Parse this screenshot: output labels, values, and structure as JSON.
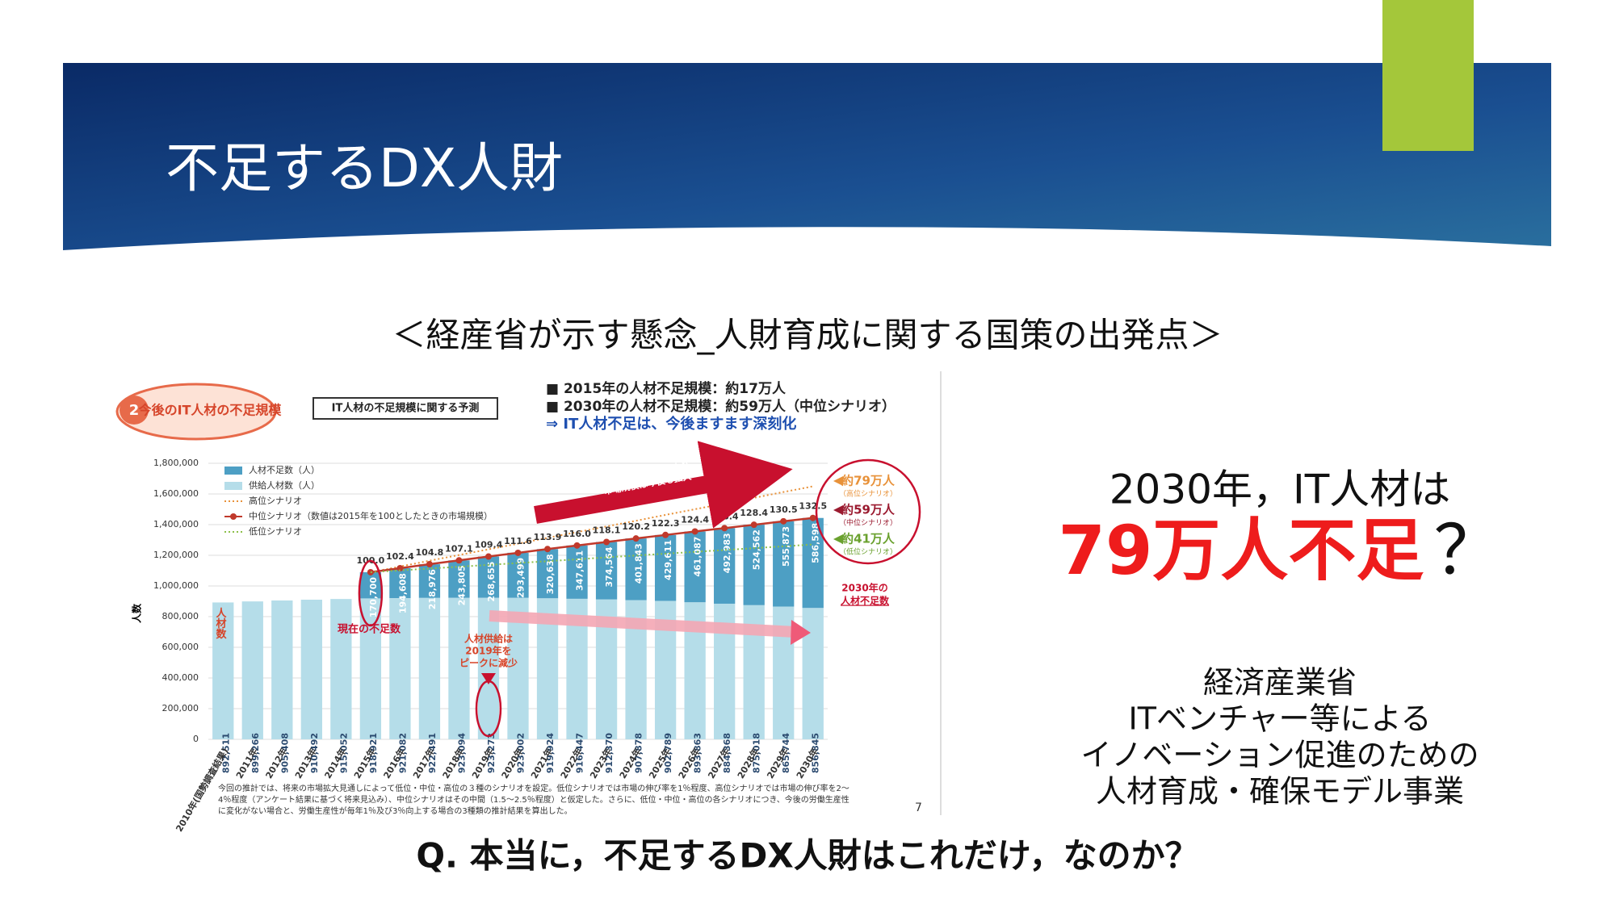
{
  "slide": {
    "title": "不足するDX人財",
    "subtitle": "＜経産省が示す懸念_人財育成に関する国策の出発点＞",
    "badge": "2",
    "badge_text": "今後のIT人材の不足規模",
    "box_title": "IT人材の不足規模に関する予測",
    "bullets": [
      "■ 2015年の人材不足規模：約17万人",
      "■ 2030年の人材不足規模：約59万人（中位シナリオ）",
      "⇒ IT人材不足は、今後ますます深刻化"
    ],
    "footnote": [
      "今回の推計では、将来の市場拡大見通しによって低位・中位・高位の３種のシナリオを設定。低位シナリオでは市場の伸び率を1％程度、高位シナリオでは市場の伸び率を2～",
      "4％程度（アンケート結果に基づく将来見込み）、中位シナリオはその中間（1.5～2.5％程度）と仮定した。さらに、低位・中位・高位の各シナリオにつき、今後の労働生産性",
      "に変化がない場合と、労働生産性が毎年1％及び3％向上する場合の3種類の推計結果を算出した。"
    ],
    "page_number": "7",
    "claim": {
      "line1": "2030年，IT人材は",
      "highlight": "79万人不足",
      "mark": "？"
    },
    "source": [
      "経済産業省",
      "ITベンチャー等による",
      "イノベーション促進のための",
      "人材育成・確保モデル事業"
    ],
    "question": "Q. 本当に，不足するDX人財はこれだけ，なのか？"
  },
  "chart_data": {
    "type": "bar",
    "stacked": true,
    "ylabel": "人数",
    "categories": [
      "2010年(国勢調査結果)",
      "2011年",
      "2012年",
      "2013年",
      "2014年",
      "2015年",
      "2016年",
      "2017年",
      "2018年",
      "2019年",
      "2020年",
      "2021年",
      "2022年",
      "2023年",
      "2024年",
      "2025年",
      "2026年",
      "2027年",
      "2028年",
      "2029年",
      "2030年"
    ],
    "series": [
      {
        "name": "人材不足数（人）",
        "color": "#4d9fc4",
        "kind": "bar",
        "values": [
          null,
          null,
          null,
          null,
          null,
          170700,
          194608,
          218976,
          243805,
          268655,
          293499,
          320638,
          347611,
          374564,
          401843,
          429611,
          461087,
          492983,
          524562,
          555873,
          586598
        ],
        "value_labels": [
          null,
          null,
          null,
          null,
          null,
          "170,700",
          "194,608",
          "218,976",
          "243,805",
          "268,655",
          "293,499",
          "320,638",
          "347,611",
          "374,564",
          "401,843",
          "429,611",
          "461,087",
          "492,983",
          "524,562",
          "555,873",
          "586,598"
        ]
      },
      {
        "name": "供給人材数（人）",
        "color": "#b5dde9",
        "kind": "bar",
        "values": [
          892511,
          899266,
          905408,
          910492,
          915052,
          918921,
          921082,
          922491,
          923094,
          923273,
          923002,
          919924,
          916447,
          912370,
          907878,
          902789,
          893863,
          884368,
          875018,
          865744,
          856845
        ],
        "value_labels": [
          "892,511",
          "899,266",
          "905,408",
          "910,492",
          "915,052",
          "918,921",
          "921,082",
          "922,491",
          "923,094",
          "923,273",
          "923,002",
          "919,924",
          "916,447",
          "912,370",
          "907,878",
          "902,789",
          "893,863",
          "884,368",
          "875,018",
          "865,744",
          "856,845"
        ]
      },
      {
        "name": "高位シナリオ",
        "color": "#e8923a",
        "kind": "line",
        "dashed": true,
        "axis": "y2",
        "values": [
          null,
          null,
          null,
          null,
          null,
          100,
          103.4,
          106.9,
          110.3,
          113.7,
          117.1,
          120.6,
          124.0,
          127.4,
          130.8,
          134.3,
          137.7,
          141.1,
          144.5,
          148.0,
          151.4
        ]
      },
      {
        "name": "中位シナリオ（数値は2015年を100としたときの市場規模）",
        "color": "#c0392b",
        "kind": "line",
        "markers": true,
        "axis": "y2",
        "values": [
          null,
          null,
          null,
          null,
          null,
          100,
          102.4,
          104.8,
          107.1,
          109.4,
          111.6,
          113.9,
          116.0,
          118.1,
          120.2,
          122.3,
          124.4,
          126.4,
          128.4,
          130.5,
          132.5
        ],
        "value_labels": [
          null,
          null,
          null,
          null,
          null,
          "100.0",
          "102.4",
          "104.8",
          "107.1",
          "109.4",
          "111.6",
          "113.9",
          "116.0",
          "118.1",
          "120.2",
          "122.3",
          "124.4",
          "126.4",
          "128.4",
          "130.5",
          "132.5"
        ]
      },
      {
        "name": "低位シナリオ",
        "color": "#8cbf4a",
        "kind": "line",
        "dashed": true,
        "axis": "y2",
        "values": [
          null,
          null,
          null,
          null,
          null,
          100,
          101.1,
          102.2,
          103.3,
          104.4,
          105.5,
          106.6,
          107.7,
          108.9,
          110.0,
          111.1,
          112.2,
          113.3,
          114.4,
          115.5,
          116.6
        ]
      }
    ],
    "ylim": [
      0,
      1800000
    ],
    "yticks": [
      0,
      {
        "value": 200000,
        "label": "200,000"
      },
      {
        "value": 400000,
        "label": "400,000"
      },
      {
        "value": 600000,
        "label": "600,000"
      },
      {
        "value": 800000,
        "label": "800,000"
      },
      {
        "value": 1000000,
        "label": "1,000,000"
      },
      {
        "value": 1200000,
        "label": "1,200,000"
      },
      {
        "value": 1400000,
        "label": "1,400,000"
      },
      {
        "value": 1600000,
        "label": "1,600,000"
      },
      {
        "value": 1800000,
        "label": "1,800,000"
      }
    ],
    "y2lim": [
      0,
      165.2
    ],
    "annotations": {
      "market": [
        "ITニーズの拡大により",
        "市場規模は今後も拡大"
      ],
      "supply_label": "人材数",
      "current": "現在の不足数",
      "peak": [
        "人材供給は",
        "2019年を",
        "ピークに減少"
      ],
      "high": "約79万人",
      "high_note": "（高位シナリオ）",
      "mid": "約59万人",
      "mid_note": "（中位シナリオ）",
      "low": "約41万人",
      "low_note": "（低位シナリオ）",
      "shortage_2030": [
        "2030年の",
        "人材不足数"
      ]
    }
  }
}
